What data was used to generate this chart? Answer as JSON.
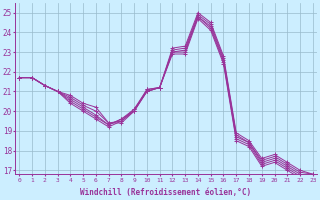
{
  "xlabel": "Windchill (Refroidissement éolien,°C)",
  "background_color": "#cceeff",
  "line_color": "#993399",
  "grid_color": "#99bbcc",
  "x_ticks": [
    0,
    1,
    2,
    3,
    4,
    5,
    6,
    7,
    8,
    9,
    10,
    11,
    12,
    13,
    14,
    15,
    16,
    17,
    18,
    19,
    20,
    21,
    22,
    23
  ],
  "ylim": [
    16.8,
    25.5
  ],
  "y_ticks": [
    17,
    18,
    19,
    20,
    21,
    22,
    23,
    24,
    25
  ],
  "series": [
    [
      21.7,
      21.7,
      21.3,
      21.0,
      20.8,
      20.4,
      20.2,
      19.4,
      19.4,
      20.0,
      21.1,
      21.2,
      23.2,
      23.3,
      25.0,
      24.5,
      22.8,
      18.9,
      18.5,
      17.6,
      17.8,
      17.4,
      17.0,
      16.8
    ],
    [
      21.7,
      21.7,
      21.3,
      21.0,
      20.7,
      20.3,
      20.0,
      19.4,
      19.5,
      20.1,
      21.1,
      21.2,
      23.1,
      23.2,
      24.9,
      24.4,
      22.7,
      18.8,
      18.4,
      17.5,
      17.7,
      17.3,
      16.9,
      16.8
    ],
    [
      21.7,
      21.7,
      21.3,
      21.0,
      20.6,
      20.2,
      19.8,
      19.3,
      19.6,
      20.1,
      21.0,
      21.2,
      23.0,
      23.1,
      24.8,
      24.3,
      22.6,
      18.7,
      18.4,
      17.4,
      17.6,
      17.2,
      16.8,
      16.7
    ],
    [
      21.7,
      21.7,
      21.3,
      21.0,
      20.5,
      20.1,
      19.7,
      19.3,
      19.6,
      20.0,
      21.0,
      21.2,
      23.0,
      23.0,
      24.8,
      24.2,
      22.5,
      18.6,
      18.3,
      17.3,
      17.5,
      17.1,
      16.7,
      16.6
    ],
    [
      21.7,
      21.7,
      21.3,
      21.0,
      20.4,
      20.0,
      19.6,
      19.2,
      19.5,
      20.0,
      21.0,
      21.2,
      22.9,
      22.9,
      24.7,
      24.1,
      22.4,
      18.5,
      18.2,
      17.2,
      17.4,
      17.0,
      16.6,
      16.5
    ]
  ]
}
